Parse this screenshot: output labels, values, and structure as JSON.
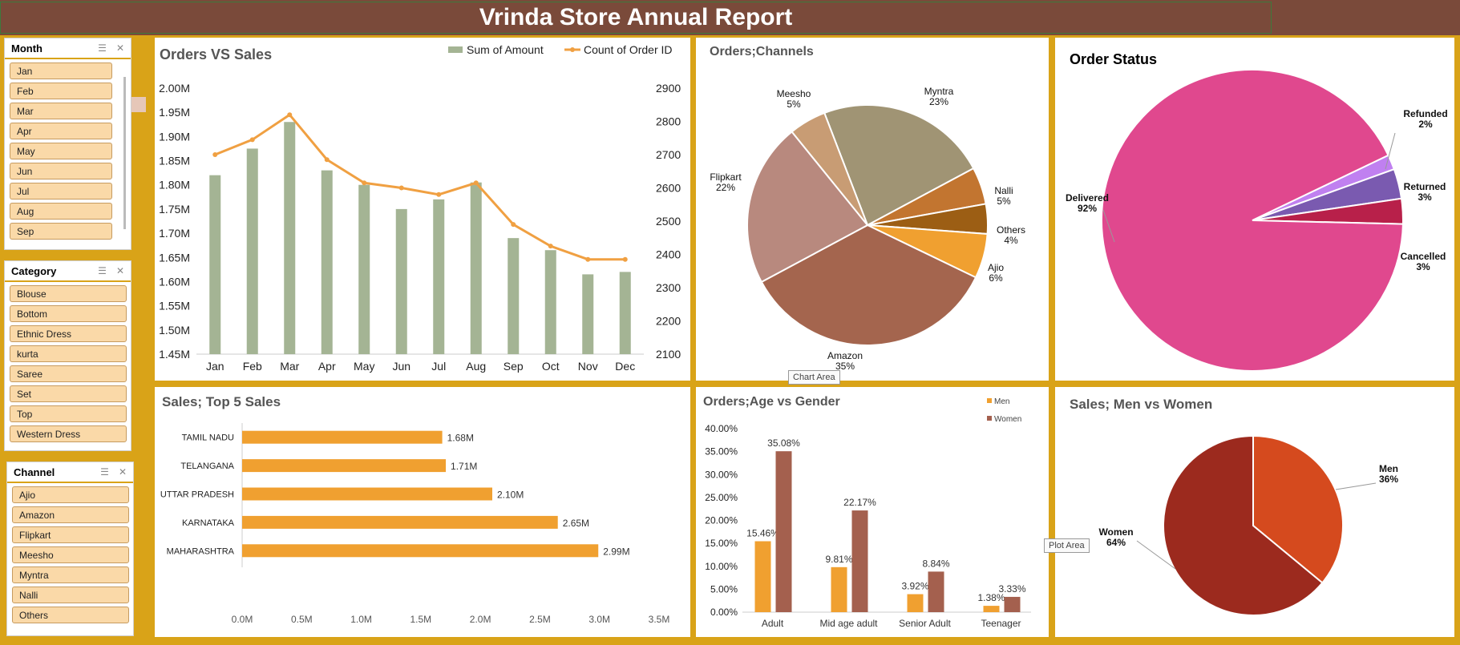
{
  "title": "Vrinda Store Annual Report",
  "slicers": {
    "month": {
      "title": "Month",
      "items": [
        "Jan",
        "Feb",
        "Mar",
        "Apr",
        "May",
        "Jun",
        "Jul",
        "Aug",
        "Sep"
      ]
    },
    "category": {
      "title": "Category",
      "items": [
        "Blouse",
        "Bottom",
        "Ethnic Dress",
        "kurta",
        "Saree",
        "Set",
        "Top",
        "Western Dress"
      ]
    },
    "channel": {
      "title": "Channel",
      "items": [
        "Ajio",
        "Amazon",
        "Flipkart",
        "Meesho",
        "Myntra",
        "Nalli",
        "Others"
      ]
    }
  },
  "tooltips": {
    "chart_area": "Chart Area",
    "plot_area": "Plot Area"
  },
  "colors": {
    "header": "#7a4a3a",
    "background": "#d9a318",
    "bar": "#a4b494",
    "line": "#f0a042"
  },
  "chart_data": [
    {
      "type": "bar",
      "title": "Orders VS Sales",
      "categories": [
        "Jan",
        "Feb",
        "Mar",
        "Apr",
        "May",
        "Jun",
        "Jul",
        "Aug",
        "Sep",
        "Oct",
        "Nov",
        "Dec"
      ],
      "series": [
        {
          "name": "Sum of Amount",
          "values": [
            1.82,
            1.875,
            1.93,
            1.83,
            1.8,
            1.75,
            1.77,
            1.805,
            1.69,
            1.665,
            1.615,
            1.62
          ]
        },
        {
          "name": "Count of Order ID",
          "type": "line",
          "values": [
            2700,
            2745,
            2820,
            2685,
            2615,
            2600,
            2580,
            2615,
            2490,
            2425,
            2385,
            2385
          ]
        }
      ],
      "y_left_ticks": [
        "2.00M",
        "1.95M",
        "1.90M",
        "1.85M",
        "1.80M",
        "1.75M",
        "1.70M",
        "1.65M",
        "1.60M",
        "1.55M",
        "1.50M",
        "1.45M"
      ],
      "y_right_ticks": [
        "2900",
        "2800",
        "2700",
        "2600",
        "2500",
        "2400",
        "2300",
        "2200",
        "2100"
      ],
      "ylim": [
        1.45,
        2.0
      ],
      "y2lim": [
        2100,
        2900
      ],
      "legend": "top-right"
    },
    {
      "type": "pie",
      "title": "Orders;Channels",
      "slices": [
        {
          "label": "Myntra",
          "pct": "23%",
          "value": 23,
          "color": "#a09474"
        },
        {
          "label": "Nalli",
          "pct": "5%",
          "value": 5,
          "color": "#c27530"
        },
        {
          "label": "Others",
          "pct": "4%",
          "value": 4,
          "color": "#9c5e14"
        },
        {
          "label": "Ajio",
          "pct": "6%",
          "value": 6,
          "color": "#f0a030"
        },
        {
          "label": "Amazon",
          "pct": "35%",
          "value": 35,
          "color": "#a4654e"
        },
        {
          "label": "Flipkart",
          "pct": "22%",
          "value": 22,
          "color": "#b8897e"
        },
        {
          "label": "Meesho",
          "pct": "5%",
          "value": 5,
          "color": "#c89c74"
        }
      ]
    },
    {
      "type": "pie",
      "title": "Order Status",
      "slices": [
        {
          "label": "Refunded",
          "pct": "2%",
          "value": 1.6,
          "color": "#c080f0"
        },
        {
          "label": "Returned",
          "pct": "3%",
          "value": 3.2,
          "color": "#7a5ab0"
        },
        {
          "label": "Cancelled",
          "pct": "3%",
          "value": 2.7,
          "color": "#b8204a"
        },
        {
          "label": "Delivered",
          "pct": "92%",
          "value": 92.5,
          "color": "#e0488e"
        }
      ]
    },
    {
      "type": "bar",
      "orientation": "horizontal",
      "title": "Sales; Top 5 Sales",
      "categories": [
        "TAMIL NADU",
        "TELANGANA",
        "UTTAR PRADESH",
        "KARNATAKA",
        "MAHARASHTRA"
      ],
      "values": [
        1.68,
        1.71,
        2.1,
        2.65,
        2.99
      ],
      "labels": [
        "1.68M",
        "1.71M",
        "2.10M",
        "2.65M",
        "2.99M"
      ],
      "x_ticks": [
        "0.0M",
        "0.5M",
        "1.0M",
        "1.5M",
        "2.0M",
        "2.5M",
        "3.0M",
        "3.5M"
      ],
      "xlim": [
        0,
        3.5
      ]
    },
    {
      "type": "bar",
      "title": "Orders;Age vs Gender",
      "categories": [
        "Adult",
        "Mid age adult",
        "Senior Adult",
        "Teenager"
      ],
      "series": [
        {
          "name": "Men",
          "values": [
            15.46,
            9.81,
            3.92,
            1.38
          ],
          "labels": [
            "15.46%",
            "9.81%",
            "3.92%",
            "1.38%"
          ]
        },
        {
          "name": "Women",
          "values": [
            35.08,
            22.17,
            8.84,
            3.33
          ],
          "labels": [
            "35.08%",
            "22.17%",
            "8.84%",
            "3.33%"
          ]
        }
      ],
      "y_ticks": [
        "40.00%",
        "35.00%",
        "30.00%",
        "25.00%",
        "20.00%",
        "15.00%",
        "10.00%",
        "5.00%",
        "0.00%"
      ],
      "ylim": [
        0,
        40
      ],
      "legend": "top-right"
    },
    {
      "type": "pie",
      "title": "Sales; Men vs Women",
      "slices": [
        {
          "label": "Men",
          "pct": "36%",
          "value": 36,
          "color": "#d54a1e"
        },
        {
          "label": "Women",
          "pct": "64%",
          "value": 64,
          "color": "#9c2a1e"
        }
      ]
    }
  ]
}
